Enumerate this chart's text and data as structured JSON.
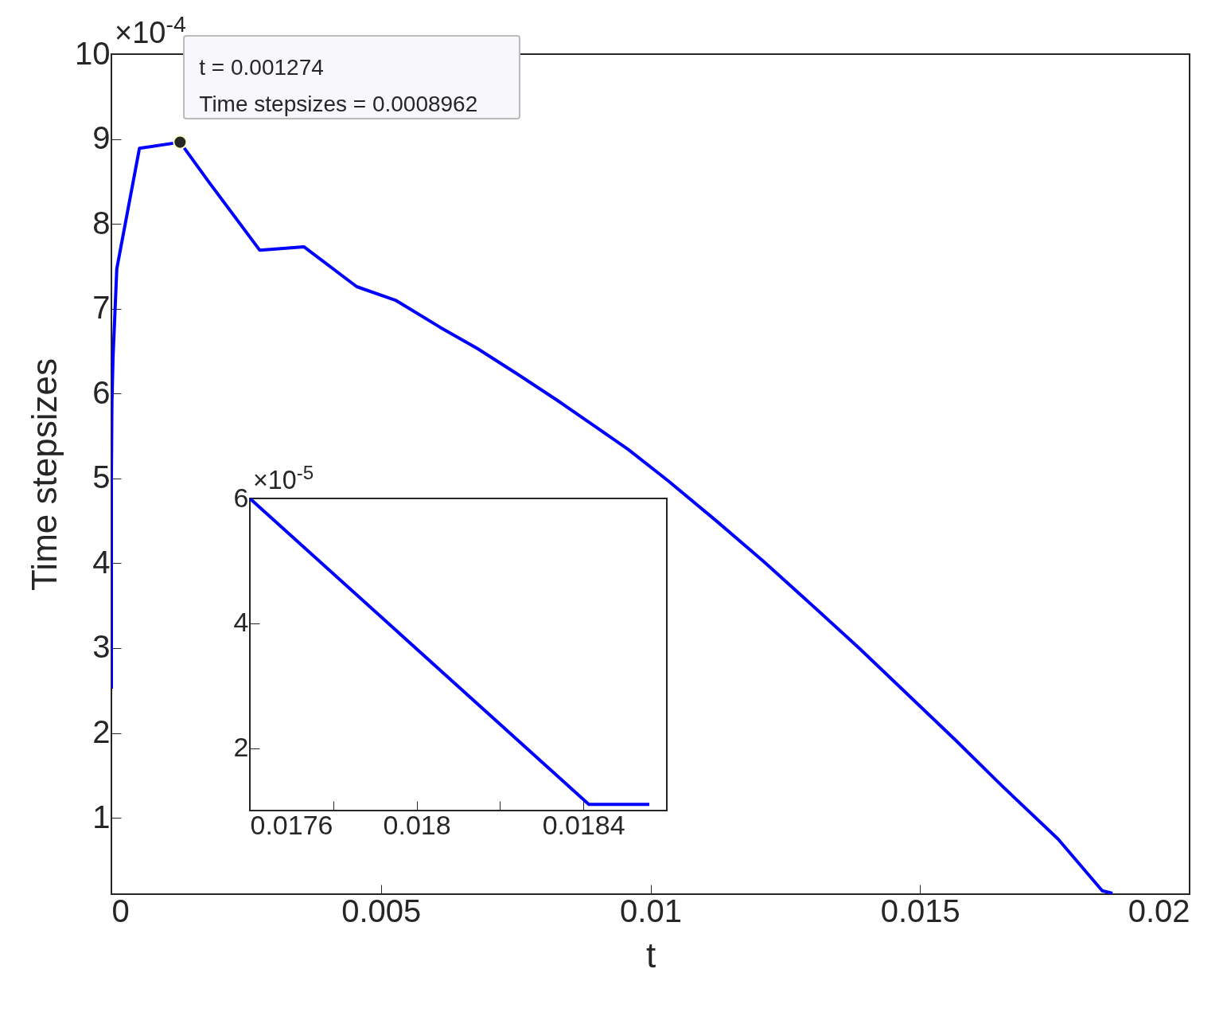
{
  "chart_data": [
    {
      "type": "line",
      "xlabel": "t",
      "ylabel": "Time stepsizes",
      "x": [
        0,
        0,
        1e-05,
        3e-05,
        0.0001,
        0.00052,
        0.001274,
        0.0018,
        0.00275,
        0.00357,
        0.00455,
        0.00527,
        0.0061,
        0.00679,
        0.00753,
        0.00827,
        0.009,
        0.00959,
        0.01033,
        0.01122,
        0.0121,
        0.01299,
        0.01387,
        0.01476,
        0.01565,
        0.01653,
        0.01756,
        0.01838,
        0.01857
      ],
      "series": [
        {
          "color": "#0000ff",
          "values": [
            2.52,
            5.01,
            5.9,
            6.42,
            7.47,
            8.89,
            8.962,
            8.5,
            7.69,
            7.73,
            7.26,
            7.1,
            6.78,
            6.53,
            6.23,
            5.92,
            5.6,
            5.34,
            4.97,
            4.5,
            4.02,
            3.51,
            3.0,
            2.46,
            1.92,
            1.37,
            0.75,
            0.14,
            0.11
          ]
        }
      ],
      "xlim": [
        0,
        0.02
      ],
      "xticks": [
        0,
        0.005,
        0.01,
        0.015,
        0.02
      ],
      "ylim": [
        0.1,
        10
      ],
      "yticks": [
        1,
        2,
        3,
        4,
        5,
        6,
        7,
        8,
        9,
        10
      ],
      "annotations": [
        "×10$^{-4}$",
        {
          "text": "t = 0.001274",
          "x": 0.001274,
          "y": 8.962
        },
        {
          "text": "Time stepsizes = 0.0008962",
          "x": 0.001274,
          "y": 8.962
        }
      ]
    },
    {
      "type": "line",
      "x": [
        0.0176,
        0.018413,
        0.018558
      ],
      "series": [
        {
          "color": "#0000ff",
          "values": [
            6,
            1.1,
            1.1
          ]
        }
      ],
      "xlim": [
        0.0176,
        0.0186
      ],
      "xticks": [
        0.0176,
        {
          "value": 0.0178,
          "label": null
        },
        0.018,
        {
          "value": 0.0182,
          "label": null
        },
        0.0184
      ],
      "ylim": [
        1,
        6
      ],
      "yticks": [
        2,
        4,
        6
      ],
      "annotations": [
        "×10$^{-5}$"
      ]
    }
  ]
}
